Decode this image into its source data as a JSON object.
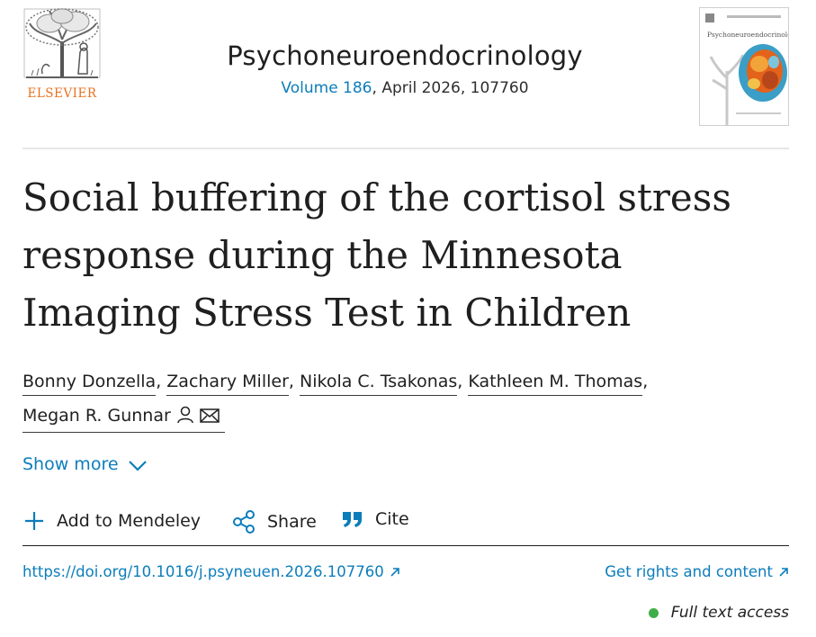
{
  "colors": {
    "link": "#0c7dbb",
    "publisher_orange": "#e9711c",
    "access_green": "#3fae49",
    "text": "#1f1f1f"
  },
  "header": {
    "publisher_name": "ELSEVIER",
    "journal_title": "Psychoneuroendocrinology",
    "volume_link": "Volume 186",
    "issue_info": ", April 2026, 107760",
    "cover_title": "Psychoneuroendocrinology"
  },
  "article": {
    "title": "Social buffering of the cortisol stress response during the Minnesota Imaging Stress Test in Children",
    "authors": [
      {
        "name": "Bonny Donzella",
        "sep": ", "
      },
      {
        "name": "Zachary Miller",
        "sep": ", "
      },
      {
        "name": "Nikola C. Tsakonas",
        "sep": ", "
      },
      {
        "name": "Kathleen M. Thomas",
        "sep": ","
      },
      {
        "name": "Megan R. Gunnar",
        "sep": ""
      }
    ],
    "corresponding_icons": [
      "person-icon",
      "envelope-icon"
    ]
  },
  "show_more": {
    "label": "Show more",
    "icon": "chevron-down-icon"
  },
  "actions": {
    "mendeley": {
      "label": "Add to Mendeley",
      "icon": "plus-icon"
    },
    "share": {
      "label": "Share",
      "icon": "share-icon"
    },
    "cite": {
      "label": "Cite",
      "icon": "quote-icon"
    }
  },
  "links": {
    "doi": "https://doi.org/10.1016/j.psyneuen.2026.107760",
    "rights": "Get rights and content",
    "external_icon": "external-arrow-icon"
  },
  "access": {
    "label": "Full text access"
  }
}
